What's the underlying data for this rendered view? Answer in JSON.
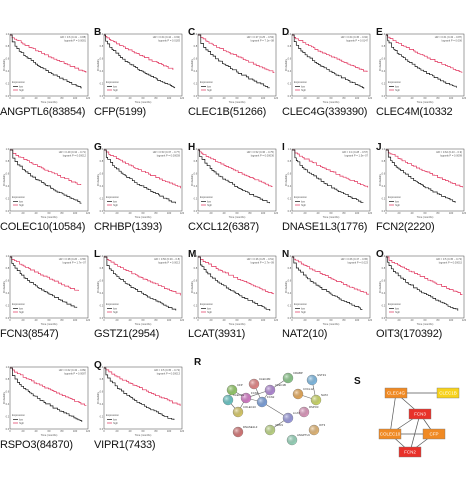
{
  "figure": {
    "panels": [
      {
        "letter": "",
        "gene": "ANGPTL6(83854)",
        "hr": "HR = 0.6 (0.41 − 0.88)",
        "p": "logrank P = 0.0081"
      },
      {
        "letter": "B",
        "gene": "CFP(5199)",
        "hr": "HR = 0.64 (0.44 − 0.93)",
        "p": "logrank P = 0.0183"
      },
      {
        "letter": "C",
        "gene": "CLEC1B(51266)",
        "hr": "HR = 0.37 (0.25 − 0.53)",
        "p": "logrank P = 7.1e−08"
      },
      {
        "letter": "D",
        "gene": "CLEC4G(339390)",
        "hr": "HR = 0.64 (0.45 − 0.92)",
        "p": "logrank P = 0.0147"
      },
      {
        "letter": "E",
        "gene": "CLEC4M(10332",
        "hr": "HR = 0.61 (0.43 − 0.87)",
        "p": "logrank P = 0.006"
      },
      {
        "letter": "",
        "gene": "COLEC10(10584)",
        "hr": "HR = 0.49 (0.34 − 0.71)",
        "p": "logrank P = 0.00012"
      },
      {
        "letter": "G",
        "gene": "CRHBP(1393)",
        "hr": "HR = 0.53 (0.37 − 0.77)",
        "p": "logrank P = 0.00059"
      },
      {
        "letter": "H",
        "gene": "CXCL12(6387)",
        "hr": "HR = 0.52 (0.36 − 0.75)",
        "p": "logrank P = 0.00036"
      },
      {
        "letter": "I",
        "gene": "DNASE1L3(1776)",
        "hr": "HR = 0.4 (0.28 − 0.57)",
        "p": "logrank P = 1.5e−07"
      },
      {
        "letter": "J",
        "gene": "FCN2(2220)",
        "hr": "HR = 0.62 (0.43 − 0.9)",
        "p": "logrank P = 0.0099"
      },
      {
        "letter": "",
        "gene": "FCN3(8547)",
        "hr": "HR = 0.38 (0.26 − 0.55)",
        "p": "logrank P = 1.7e−07"
      },
      {
        "letter": "L",
        "gene": "GSTZ1(2954)",
        "hr": "HR = 0.56 (0.39 − 0.8)",
        "p": "logrank P = 0.0013"
      },
      {
        "letter": "M",
        "gene": "LCAT(3931)",
        "hr": "HR = 0.36 (0.25 − 0.51)",
        "p": "logrank P = 2.7e−09"
      },
      {
        "letter": "N",
        "gene": "NAT2(10)",
        "hr": "HR = 0.66 (0.47 − 0.95)",
        "p": "logrank P = 0.023"
      },
      {
        "letter": "O",
        "gene": "OIT3(170392)",
        "hr": "HR = 0.5 (0.35 − 0.72)",
        "p": "logrank P = 0.00015"
      },
      {
        "letter": "",
        "gene": "RSPO3(84870)",
        "hr": "HR = 0.62 (0.43 − 0.89)",
        "p": "logrank P = 0.0087"
      },
      {
        "letter": "Q",
        "gene": "VIPR1(7433)",
        "hr": "HR = 0.5 (0.35 − 0.72)",
        "p": "logrank P = 0.00013"
      }
    ],
    "common": {
      "ylabel": "Probability",
      "xlabel": "Time (months)",
      "legend_title": "Expression",
      "legend_low": "low",
      "legend_high": "high",
      "x_ticks": [
        "0",
        "20",
        "40",
        "60",
        "80",
        "100",
        "120"
      ],
      "y_ticks": [
        "0.0",
        "0.2",
        "0.4",
        "0.6",
        "0.8",
        "1.0"
      ],
      "color_low": "#111111",
      "color_high": "#e0305a"
    },
    "panel_r": {
      "letter": "R",
      "nodes": [
        "CFP",
        "FCN3",
        "FCN2",
        "COLEC10",
        "CLEC4G",
        "CLEC4M",
        "CLEC1B",
        "CRHBP",
        "CXCL12",
        "GSTZ1",
        "NAT2",
        "RSPO3",
        "LCAT",
        "VIPR1",
        "OIT3",
        "ANGPTL6",
        "DNASE1L3"
      ]
    },
    "panel_s": {
      "letter": "S",
      "nodes": [
        "CLEC4G",
        "CLEC1B",
        "FCN3",
        "FCN2",
        "COLEC10",
        "CFP"
      ],
      "hub_color": "#e8312a",
      "mid_color": "#f08a24",
      "leaf_color": "#f7d21c"
    }
  }
}
